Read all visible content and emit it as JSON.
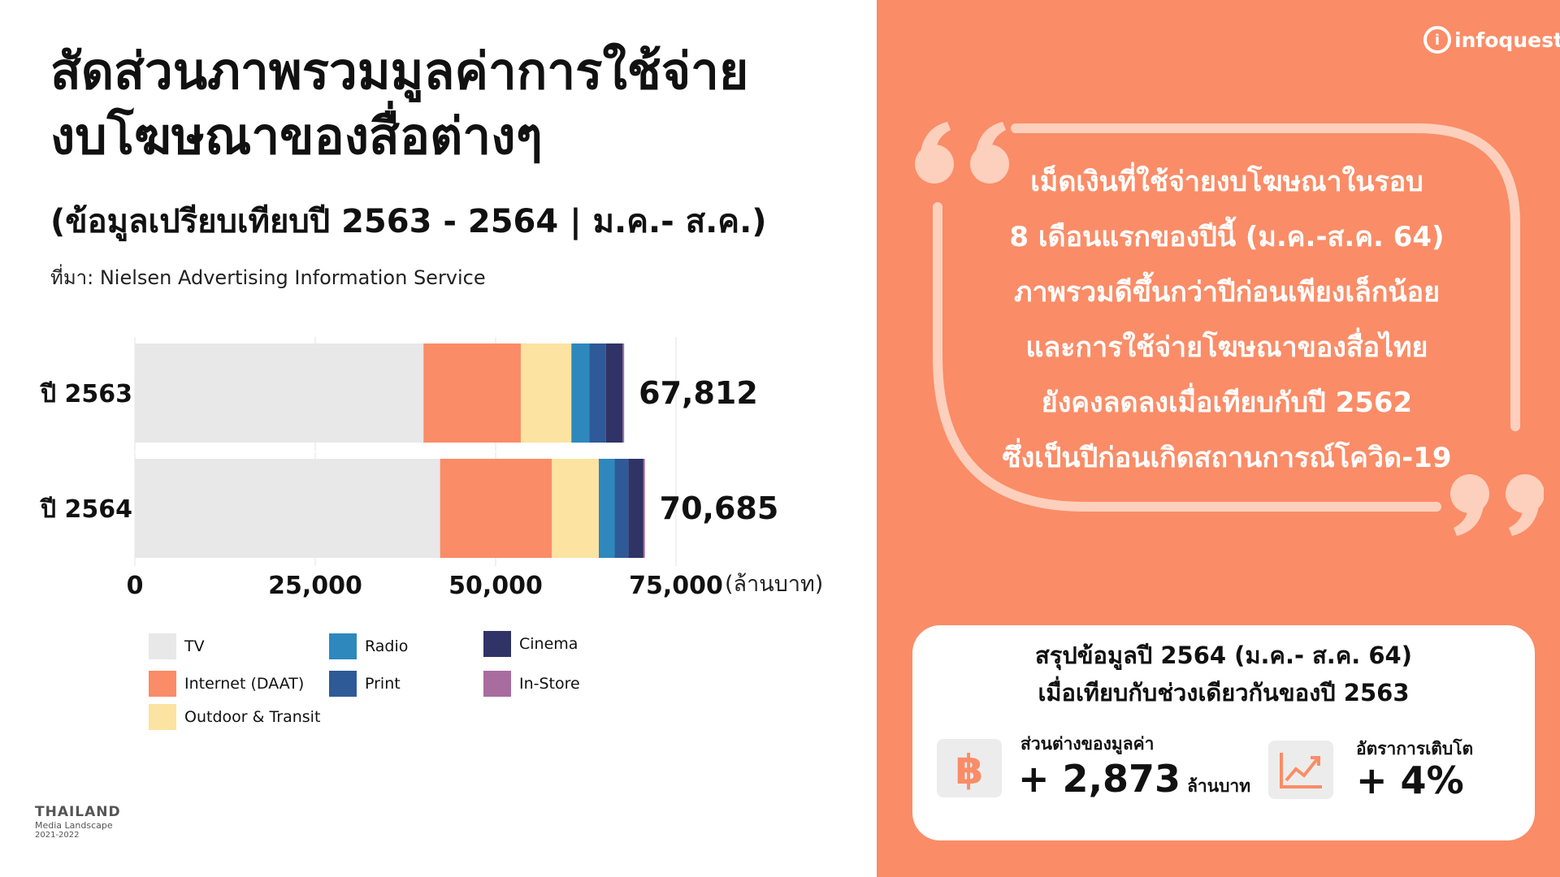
{
  "title_line1": "สัดส่วนภาพรวมมูลค่าการใช้จ่าย",
  "title_line2": "งบโฆษณาของสื่อต่างๆ",
  "subtitle": "(ข้อมูลเปรียบเทียบปี 2563 - 2564 | ม.ค.- ส.ค.)",
  "source": "ที่มา: Nielsen Advertising Information Service",
  "chart_data": {
    "type": "bar",
    "orientation": "horizontal",
    "stacked": true,
    "categories": [
      "ปี 2563",
      "ปี 2564"
    ],
    "totals": [
      "67,812",
      "70,685"
    ],
    "series": [
      {
        "name": "TV",
        "color": "#E8E8E8",
        "values": [
          40000,
          42300
        ]
      },
      {
        "name": "Internet (DAAT)",
        "color": "#FA8D67",
        "values": [
          13500,
          15500
        ]
      },
      {
        "name": "Outdoor & Transit",
        "color": "#FDE3A2",
        "values": [
          7000,
          6500
        ]
      },
      {
        "name": "Radio",
        "color": "#2E88BE",
        "values": [
          2500,
          2200
        ]
      },
      {
        "name": "Print",
        "color": "#2E5A97",
        "values": [
          2300,
          1900
        ]
      },
      {
        "name": "Cinema",
        "color": "#2F3366",
        "values": [
          2312,
          2085
        ]
      },
      {
        "name": "In-Store",
        "color": "#A86C9E",
        "values": [
          200,
          200
        ]
      }
    ],
    "x_ticks": [
      "0",
      "25,000",
      "50,000",
      "75,000"
    ],
    "xlim": [
      0,
      75000
    ],
    "x_unit": "(ล้านบาท)",
    "grid": true,
    "legend_position": "bottom"
  },
  "legend_items": [
    "TV",
    "Radio",
    "Cinema",
    "Internet (DAAT)",
    "Print",
    "In-Store",
    "Outdoor & Transit"
  ],
  "logo_text": "infoquest",
  "quote_lines": [
    "เม็ดเงินที่ใช้จ่ายงบโฆษณาในรอบ",
    "8 เดือนแรกของปีนี้ (ม.ค.-ส.ค. 64)",
    "ภาพรวมดีขึ้นกว่าปีก่อนเพียงเล็กน้อย",
    "และการใช้จ่ายโฆษณาของสื่อไทย",
    "ยังคงลดลงเมื่อเทียบกับปี 2562",
    "ซึ่งเป็นปีก่อนเกิดสถานการณ์โควิด-19"
  ],
  "summary": {
    "title_line1": "สรุปข้อมูลปี 2564 (ม.ค.- ส.ค. 64)",
    "title_line2": "เมื่อเทียบกับช่วงเดียวกันของปี 2563",
    "diff_label": "ส่วนต่างของมูลค่า",
    "diff_value": "+ 2,873",
    "diff_unit": "ล้านบาท",
    "growth_label": "อัตราการเติบโต",
    "growth_value": "+ 4%"
  },
  "brand": {
    "line1": "THAILAND",
    "line2": "Media Landscape",
    "line3": "2021-2022"
  },
  "icons": {
    "currency": "baht-icon",
    "growth": "growth-chart-icon"
  },
  "colors": {
    "accent": "#FA8D67",
    "icon_orange": "#FA8D67"
  }
}
